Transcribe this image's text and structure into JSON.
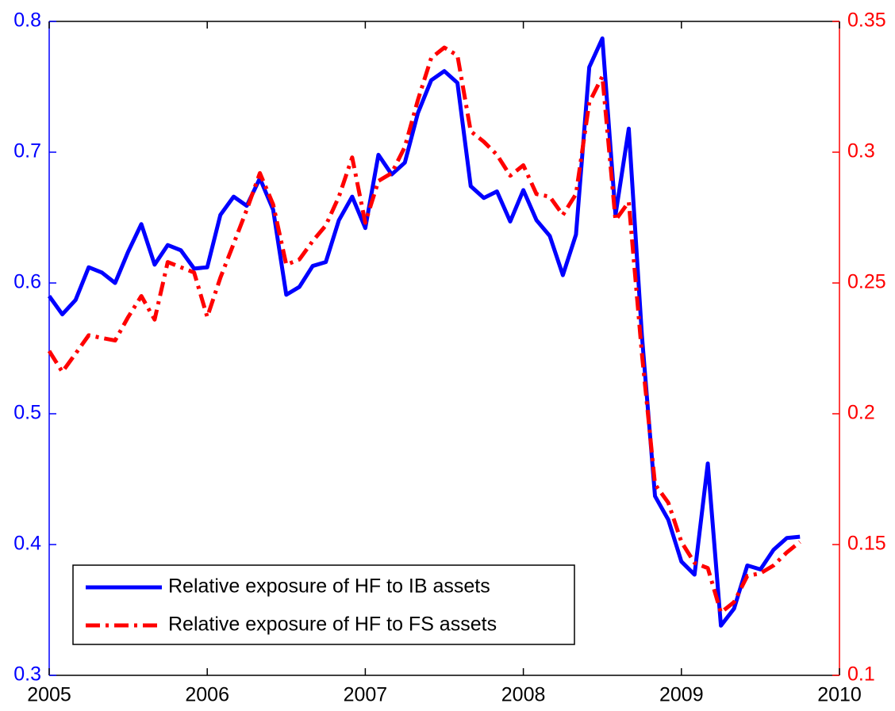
{
  "chart_data": {
    "type": "line",
    "x": [
      2005,
      2005.083,
      2005.167,
      2005.25,
      2005.333,
      2005.417,
      2005.5,
      2005.583,
      2005.667,
      2005.75,
      2005.833,
      2005.917,
      2006,
      2006.083,
      2006.167,
      2006.25,
      2006.333,
      2006.417,
      2006.5,
      2006.583,
      2006.667,
      2006.75,
      2006.833,
      2006.917,
      2007,
      2007.083,
      2007.167,
      2007.25,
      2007.333,
      2007.417,
      2007.5,
      2007.583,
      2007.667,
      2007.75,
      2007.833,
      2007.917,
      2008,
      2008.083,
      2008.167,
      2008.25,
      2008.333,
      2008.417,
      2008.5,
      2008.583,
      2008.667,
      2008.75,
      2008.833,
      2008.917,
      2009,
      2009.083,
      2009.167,
      2009.25,
      2009.333,
      2009.417,
      2009.5,
      2009.583,
      2009.667,
      2009.75
    ],
    "series": [
      {
        "name": "Relative exposure of HF to IB assets",
        "color": "#0000ff",
        "axis": "y",
        "values": [
          0.59,
          0.576,
          0.587,
          0.612,
          0.608,
          0.6,
          0.624,
          0.645,
          0.614,
          0.629,
          0.625,
          0.611,
          0.612,
          0.652,
          0.666,
          0.659,
          0.68,
          0.656,
          0.591,
          0.597,
          0.613,
          0.616,
          0.648,
          0.666,
          0.642,
          0.698,
          0.683,
          0.692,
          0.73,
          0.755,
          0.762,
          0.753,
          0.674,
          0.665,
          0.67,
          0.647,
          0.671,
          0.648,
          0.636,
          0.606,
          0.637,
          0.765,
          0.787,
          0.652,
          0.718,
          0.56,
          0.437,
          0.419,
          0.387,
          0.377,
          0.462,
          0.338,
          0.351,
          0.384,
          0.381,
          0.396,
          0.405,
          0.406
        ]
      },
      {
        "name": "Relative exposure of HF to FS assets",
        "color": "#ff0000",
        "axis": "y2",
        "values": [
          0.224,
          0.216,
          0.223,
          0.23,
          0.229,
          0.228,
          0.237,
          0.245,
          0.236,
          0.258,
          0.256,
          0.254,
          0.237,
          0.252,
          0.265,
          0.278,
          0.292,
          0.28,
          0.257,
          0.259,
          0.266,
          0.272,
          0.283,
          0.298,
          0.273,
          0.289,
          0.292,
          0.302,
          0.32,
          0.336,
          0.34,
          0.337,
          0.308,
          0.304,
          0.299,
          0.291,
          0.295,
          0.284,
          0.283,
          0.276,
          0.284,
          0.319,
          0.329,
          0.274,
          0.281,
          0.223,
          0.173,
          0.166,
          0.151,
          0.143,
          0.141,
          0.124,
          0.128,
          0.138,
          0.139,
          0.142,
          0.147,
          0.151
        ]
      }
    ],
    "xlim": [
      2005,
      2010
    ],
    "xticks": [
      2005,
      2006,
      2007,
      2008,
      2009,
      2010
    ],
    "ylim": [
      0.3,
      0.8
    ],
    "yticks": [
      0.3,
      0.4,
      0.5,
      0.6,
      0.7,
      0.8
    ],
    "y2lim": [
      0.1,
      0.35
    ],
    "y2ticks": [
      0.1,
      0.15,
      0.2,
      0.25,
      0.3,
      0.35
    ],
    "legend": "lower left"
  }
}
